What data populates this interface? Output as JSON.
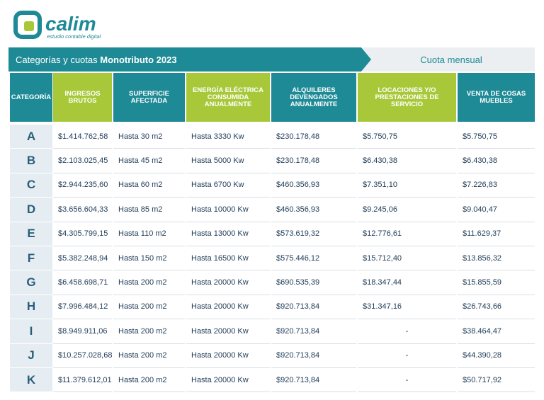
{
  "header": {
    "logo_name": "calim",
    "logo_tagline": "estudio contable digital"
  },
  "banner": {
    "title": "Categorías y cuotas",
    "title_bold": "Monotributo 2023",
    "right": "Cuota mensual"
  },
  "table": {
    "columns": [
      "CATEGORÍA",
      "INGRESOS BRUTOS",
      "SUPERFICIE AFECTADA",
      "ENERGÍA ELÉCTRICA CONSUMIDA ANUALMENTE",
      "ALQUILERES DEVENGADOS ANUALMENTE",
      "LOCACIONES Y/O PRESTACIONES DE SERVICIO",
      "VENTA DE COSAS MUEBLES"
    ],
    "rows": [
      [
        "A",
        "$1.414.762,58",
        "Hasta 30 m2",
        "Hasta 3330 Kw",
        "$230.178,48",
        "$5.750,75",
        "$5.750,75"
      ],
      [
        "B",
        "$2.103.025,45",
        "Hasta 45 m2",
        "Hasta 5000 Kw",
        "$230.178,48",
        "$6.430,38",
        "$6.430,38"
      ],
      [
        "C",
        "$2.944.235,60",
        "Hasta 60 m2",
        "Hasta 6700 Kw",
        "$460.356,93",
        "$7.351,10",
        "$7.226,83"
      ],
      [
        "D",
        "$3.656.604,33",
        "Hasta 85 m2",
        "Hasta 10000 Kw",
        "$460.356,93",
        "$9.245,06",
        "$9.040,47"
      ],
      [
        "E",
        "$4.305.799,15",
        "Hasta 110 m2",
        "Hasta 13000 Kw",
        "$573.619,32",
        "$12.776,61",
        "$11.629,37"
      ],
      [
        "F",
        "$5.382.248,94",
        "Hasta 150 m2",
        "Hasta 16500 Kw",
        "$575.446,12",
        "$15.712,40",
        "$13.856,32"
      ],
      [
        "G",
        "$6.458.698,71",
        "Hasta 200 m2",
        "Hasta 20000 Kw",
        "$690.535,39",
        "$18.347,44",
        "$15.855,59"
      ],
      [
        "H",
        "$7.996.484,12",
        "Hasta 200 m2",
        "Hasta 20000 Kw",
        "$920.713,84",
        "$31.347,16",
        "$26.743,66"
      ],
      [
        "I",
        "$8.949.911,06",
        "Hasta 200 m2",
        "Hasta 20000 Kw",
        "$920.713,84",
        "-",
        "$38.464,47"
      ],
      [
        "J",
        "$10.257.028,68",
        "Hasta 200 m2",
        "Hasta 20000 Kw",
        "$920.713,84",
        "-",
        "$44.390,28"
      ],
      [
        "K",
        "$11.379.612,01",
        "Hasta 200 m2",
        "Hasta 20000 Kw",
        "$920.713,84",
        "-",
        "$50.717,92"
      ]
    ]
  }
}
